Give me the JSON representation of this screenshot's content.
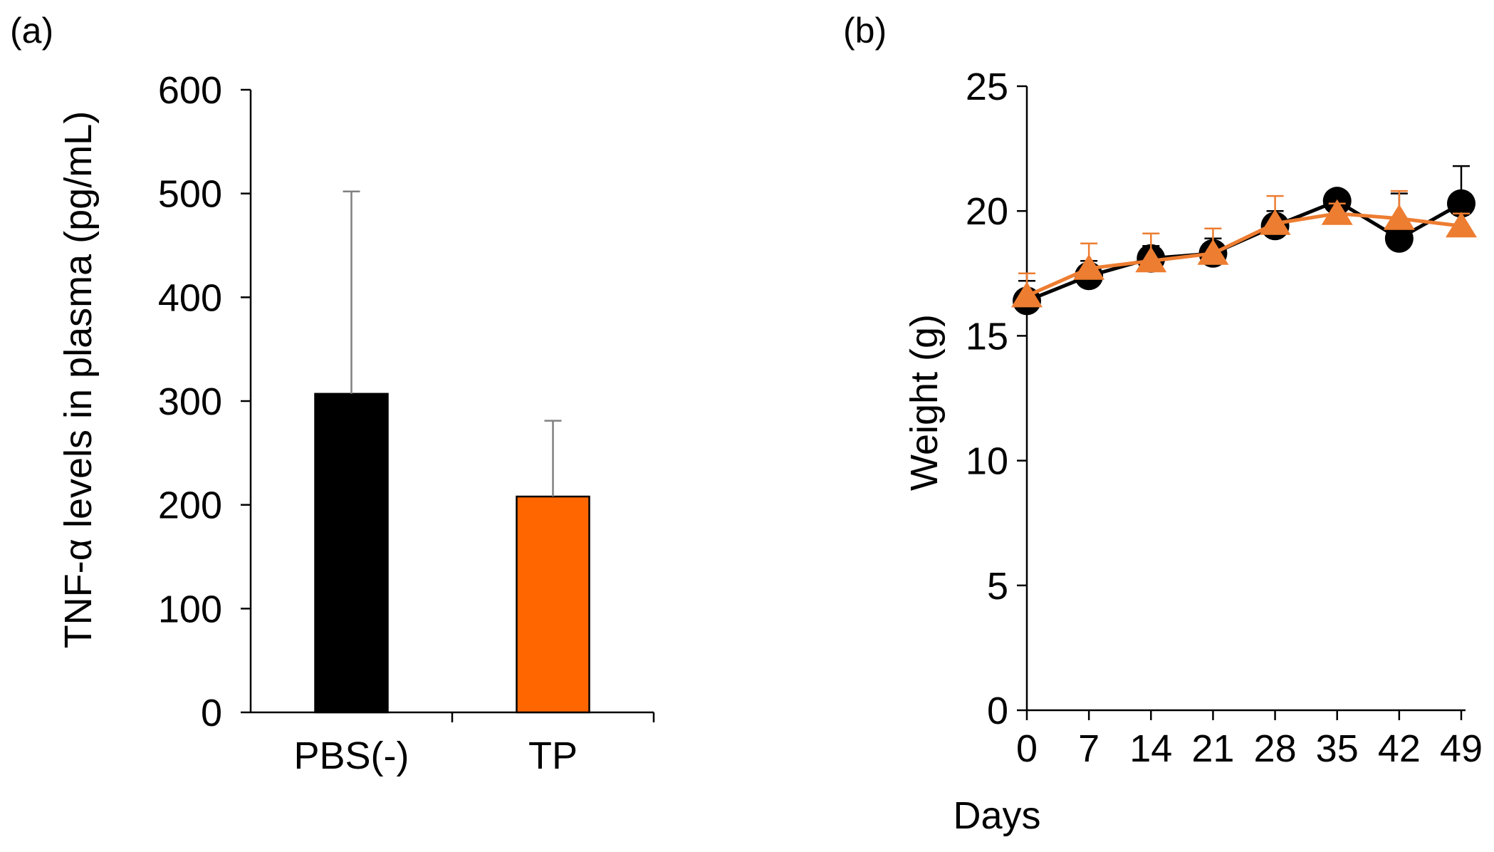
{
  "colors": {
    "pbs": "#000000",
    "tp_bar": "#ff6600",
    "tp_line": "#ed7d31",
    "axis": "#000000",
    "errorbar": "#808080"
  },
  "chart_data": [
    {
      "panel_label": "(a)",
      "type": "bar",
      "title": "",
      "xlabel": "",
      "ylabel": "TNF-α levels in plasma (pg/mL)",
      "categories": [
        "PBS(-)",
        "TP"
      ],
      "values": [
        307,
        208
      ],
      "errors": [
        195,
        73
      ],
      "bar_colors": [
        "#000000",
        "#ff6600"
      ],
      "ylim": [
        0,
        600
      ],
      "yticks": [
        0,
        100,
        200,
        300,
        400,
        500,
        600
      ],
      "ytick_labels": [
        "0",
        "100",
        "200",
        "300",
        "400",
        "500",
        "600"
      ],
      "grid": false,
      "legend": "none"
    },
    {
      "panel_label": "(b)",
      "type": "line",
      "title": "",
      "xlabel": "Days",
      "ylabel": "Weight (g)",
      "x": [
        0,
        7,
        14,
        21,
        28,
        35,
        42,
        49
      ],
      "xtick_labels": [
        "0",
        "7",
        "14",
        "21",
        "28",
        "35",
        "42",
        "49"
      ],
      "series": [
        {
          "marker": "circle",
          "color": "#000000",
          "values": [
            16.4,
            17.4,
            18.1,
            18.3,
            19.4,
            20.4,
            18.9,
            20.3
          ],
          "errors": [
            0.8,
            0.6,
            0.5,
            0.6,
            0.6,
            0.4,
            1.8,
            1.5
          ]
        },
        {
          "marker": "triangle",
          "color": "#ed7d31",
          "values": [
            16.6,
            17.7,
            18.0,
            18.3,
            19.5,
            19.9,
            19.7,
            19.4
          ],
          "errors": [
            0.9,
            1.0,
            1.1,
            1.0,
            1.1,
            0.4,
            1.1,
            0.5
          ]
        }
      ],
      "ylim": [
        0,
        25
      ],
      "yticks": [
        0,
        5,
        10,
        15,
        20,
        25
      ],
      "ytick_labels": [
        "0",
        "5",
        "10",
        "15",
        "20",
        "25"
      ],
      "grid": false,
      "legend": "none"
    }
  ]
}
